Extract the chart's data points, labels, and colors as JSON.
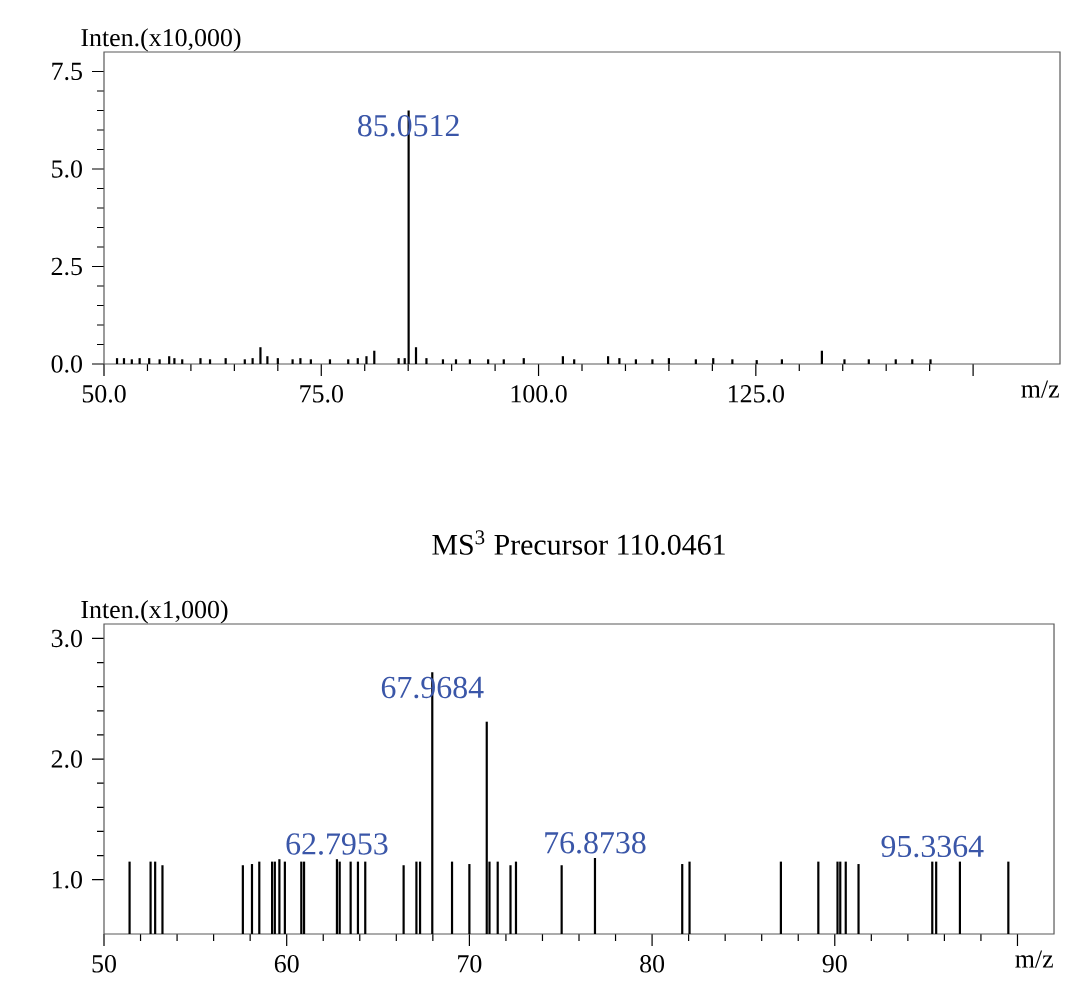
{
  "chart_data": [
    {
      "type": "bar",
      "ylabel": "Inten.(x10,000)",
      "xlabel": "m/z",
      "color": "#000000",
      "x": [
        51.5,
        52.3,
        53.2,
        54.1,
        55.2,
        56.4,
        57.5,
        58.1,
        59.0,
        61.1,
        62.2,
        64.0,
        66.2,
        67.1,
        68.0,
        68.8,
        70.0,
        71.7,
        72.6,
        73.8,
        76.0,
        78.1,
        79.2,
        80.2,
        81.1,
        83.9,
        84.6,
        85.0512,
        85.9,
        87.1,
        89.0,
        90.5,
        92.1,
        94.2,
        96.0,
        98.3,
        102.8,
        104.1,
        108.0,
        109.3,
        111.2,
        113.1,
        115.0,
        118.1,
        120.1,
        122.3,
        125.1,
        128.0,
        132.6,
        135.2,
        138.0,
        141.1,
        143.0,
        145.1
      ],
      "values": [
        0.15,
        0.15,
        0.12,
        0.15,
        0.15,
        0.12,
        0.2,
        0.15,
        0.12,
        0.15,
        0.12,
        0.15,
        0.12,
        0.15,
        0.43,
        0.2,
        0.15,
        0.12,
        0.15,
        0.12,
        0.12,
        0.12,
        0.15,
        0.2,
        0.34,
        0.15,
        0.15,
        6.5,
        0.43,
        0.15,
        0.12,
        0.12,
        0.12,
        0.12,
        0.12,
        0.15,
        0.2,
        0.12,
        0.2,
        0.15,
        0.12,
        0.12,
        0.15,
        0.12,
        0.15,
        0.12,
        0.1,
        0.12,
        0.34,
        0.12,
        0.12,
        0.12,
        0.12,
        0.12
      ],
      "xlim": [
        50,
        160
      ],
      "ylim": [
        0,
        8
      ],
      "xticks": [
        {
          "value": 50,
          "label": "50.0"
        },
        {
          "value": 75,
          "label": "75.0"
        },
        {
          "value": 100,
          "label": "100.0"
        },
        {
          "value": 125,
          "label": "125.0"
        },
        {
          "value": 150,
          "label": null
        }
      ],
      "yticks": [
        {
          "value": 0,
          "label": "0.0"
        },
        {
          "value": 2.5,
          "label": "2.5"
        },
        {
          "value": 5,
          "label": "5.0"
        },
        {
          "value": 7.5,
          "label": "7.5"
        }
      ],
      "annotations": [
        {
          "text": "85.0512",
          "x": 85.0512,
          "y": 6.5
        }
      ]
    },
    {
      "type": "bar",
      "title": "MS$^{3}$ Precursor 110.0461",
      "ylabel": "Inten.(x1,000)",
      "xlabel": "m/z",
      "color": "#000000",
      "x": [
        51.4,
        52.55,
        52.8,
        53.2,
        57.6,
        58.1,
        58.5,
        59.2,
        59.35,
        59.6,
        59.9,
        60.8,
        60.95,
        62.75,
        62.9,
        63.5,
        63.9,
        64.3,
        66.4,
        67.1,
        67.3,
        67.9684,
        69.05,
        70.0,
        70.95,
        71.1,
        71.55,
        72.25,
        72.55,
        75.05,
        76.8738,
        81.65,
        82.05,
        87.05,
        89.1,
        90.15,
        90.3,
        90.6,
        91.3,
        95.3364,
        95.55,
        96.85,
        99.5
      ],
      "values": [
        1.15,
        1.15,
        1.15,
        1.12,
        1.12,
        1.13,
        1.15,
        1.15,
        1.15,
        1.17,
        1.15,
        1.15,
        1.15,
        1.17,
        1.15,
        1.15,
        1.15,
        1.15,
        1.12,
        1.15,
        1.15,
        2.72,
        1.15,
        1.13,
        2.31,
        1.15,
        1.15,
        1.12,
        1.15,
        1.12,
        1.18,
        1.13,
        1.15,
        1.15,
        1.15,
        1.15,
        1.15,
        1.15,
        1.13,
        1.15,
        1.15,
        1.15,
        1.15
      ],
      "xlim": [
        50,
        102
      ],
      "ylim": [
        0.55,
        3.12
      ],
      "xticks": [
        50,
        60,
        70,
        80,
        90,
        {
          "value": 100,
          "label": null
        }
      ],
      "yticks": [
        {
          "value": 1,
          "label": "1.0"
        },
        {
          "value": 2,
          "label": "2.0"
        },
        {
          "value": 3,
          "label": "3.0"
        }
      ],
      "annotations": [
        {
          "text": "62.7953",
          "x": 62.75,
          "y": 1.17
        },
        {
          "text": "67.9684",
          "x": 67.9684,
          "y": 2.72
        },
        {
          "text": "76.8738",
          "x": 76.8738,
          "y": 1.18
        },
        {
          "text": "95.3364",
          "x": 95.3364,
          "y": 1.15
        }
      ]
    }
  ]
}
